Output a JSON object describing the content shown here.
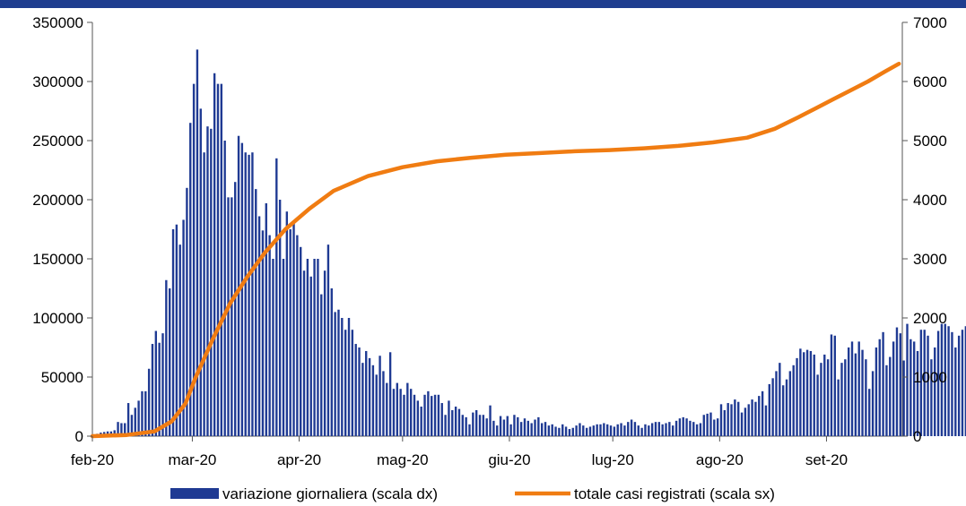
{
  "colors": {
    "band": "#1f3d8f",
    "bars": "#1f3a93",
    "line": "#f07c12",
    "axis": "#555555"
  },
  "chart_data": {
    "type": "bar+line",
    "title": "",
    "xlabel": "",
    "x_ticks": [
      "feb-20",
      "mar-20",
      "apr-20",
      "mag-20",
      "giu-20",
      "lug-20",
      "ago-20",
      "set-20"
    ],
    "x_tick_day_index": [
      0,
      29,
      60,
      90,
      121,
      151,
      182,
      213
    ],
    "y_left": {
      "ticks": [
        "0",
        "50000",
        "100000",
        "150000",
        "200000",
        "250000",
        "300000",
        "350000"
      ],
      "range": [
        0,
        350000
      ]
    },
    "y_right": {
      "ticks": [
        "0",
        "1000",
        "2000",
        "3000",
        "4000",
        "5000",
        "6000",
        "7000"
      ],
      "range": [
        0,
        7000
      ]
    },
    "legend_position": "bottom",
    "series": [
      {
        "name": "variazione giornaliera (scala dx)",
        "type": "bar",
        "axis": "left",
        "values": [
          1000,
          2000,
          3000,
          3500,
          4000,
          4000,
          5000,
          12000,
          11000,
          11000,
          28000,
          18000,
          24000,
          30000,
          38000,
          38000,
          57000,
          78000,
          89000,
          79000,
          87000,
          132000,
          125000,
          175000,
          179000,
          162000,
          183000,
          210000,
          265000,
          298000,
          327000,
          277000,
          240000,
          262000,
          260000,
          307000,
          298000,
          298000,
          250000,
          202000,
          202000,
          215000,
          254000,
          248000,
          240000,
          238000,
          240000,
          209000,
          186000,
          174000,
          197000,
          170000,
          150000,
          235000,
          200000,
          150000,
          190000,
          175000,
          180000,
          170000,
          160000,
          140000,
          150000,
          135000,
          150000,
          150000,
          120000,
          140000,
          162000,
          125000,
          105000,
          107000,
          100000,
          90000,
          100000,
          90000,
          78000,
          75000,
          62000,
          72000,
          66000,
          60000,
          52000,
          68000,
          55000,
          45000,
          71000,
          40000,
          45000,
          40000,
          35000,
          45000,
          40000,
          35000,
          30000,
          25000,
          35000,
          38000,
          34000,
          35000,
          35000,
          28000,
          18000,
          30000,
          22000,
          25000,
          23000,
          18000,
          16000,
          10000,
          20000,
          22000,
          18000,
          18000,
          15000,
          26000,
          13000,
          9000,
          17000,
          14000,
          17000,
          10000,
          18000,
          16000,
          12000,
          15000,
          13000,
          11000,
          14000,
          16000,
          11000,
          12000,
          9000,
          10000,
          8000,
          7000,
          10000,
          8000,
          6000,
          7000,
          9000,
          11000,
          9000,
          7000,
          8000,
          9000,
          10000,
          10000,
          11000,
          10000,
          9000,
          8000,
          10000,
          11000,
          9000,
          12000,
          14000,
          12000,
          9000,
          7000,
          10000,
          9000,
          11000,
          12000,
          12000,
          10000,
          11000,
          12000,
          9000,
          13000,
          15000,
          16000,
          15000,
          13000,
          12000,
          10000,
          11000,
          18000,
          19000,
          20000,
          14000,
          15000,
          27000,
          22000,
          28000,
          27000,
          31000,
          29000,
          20000,
          24000,
          27000,
          31000,
          29000,
          34000,
          38000,
          26000,
          44000,
          49000,
          55000,
          62000,
          43000,
          48000,
          55000,
          60000,
          66000,
          74000,
          71000,
          73000,
          72000,
          69000,
          52000,
          62000,
          69000,
          65000,
          86000,
          85000,
          48000,
          62000,
          65000,
          75000,
          80000,
          70000,
          80000,
          73000,
          65000,
          40000,
          55000,
          75000,
          82000,
          88000,
          60000,
          67000,
          80000,
          92000,
          87000,
          64000,
          95000,
          82000,
          80000,
          72000,
          90000,
          90000,
          85000,
          65000,
          75000,
          89000,
          95000,
          95000,
          93000,
          88000,
          75000,
          85000,
          90000,
          93000
        ]
      },
      {
        "name": "totale casi registrati (scala sx)",
        "type": "line",
        "axis": "right",
        "points": [
          [
            0,
            0
          ],
          [
            10,
            20
          ],
          [
            18,
            80
          ],
          [
            23,
            250
          ],
          [
            27,
            550
          ],
          [
            30,
            1000
          ],
          [
            35,
            1650
          ],
          [
            40,
            2250
          ],
          [
            45,
            2700
          ],
          [
            50,
            3100
          ],
          [
            56,
            3500
          ],
          [
            63,
            3850
          ],
          [
            70,
            4150
          ],
          [
            80,
            4400
          ],
          [
            90,
            4550
          ],
          [
            100,
            4650
          ],
          [
            110,
            4710
          ],
          [
            120,
            4760
          ],
          [
            130,
            4790
          ],
          [
            140,
            4820
          ],
          [
            150,
            4840
          ],
          [
            160,
            4870
          ],
          [
            170,
            4910
          ],
          [
            180,
            4970
          ],
          [
            190,
            5050
          ],
          [
            198,
            5200
          ],
          [
            205,
            5400
          ],
          [
            210,
            5550
          ],
          [
            215,
            5700
          ],
          [
            220,
            5850
          ],
          [
            225,
            6000
          ],
          [
            230,
            6170
          ],
          [
            234,
            6300
          ]
        ]
      }
    ]
  }
}
